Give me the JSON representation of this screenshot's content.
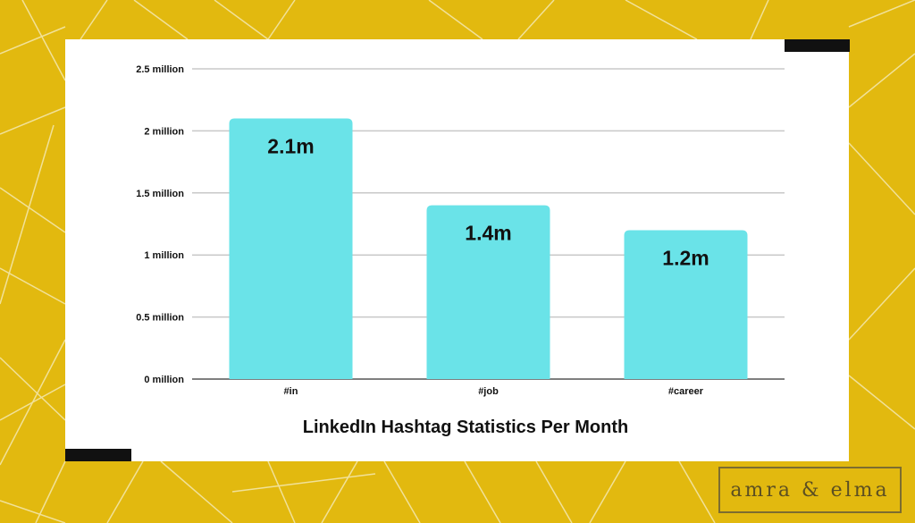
{
  "colors": {
    "background": "#e2b90f",
    "bar": "#6ae3e8",
    "card": "#ffffff",
    "accent_bars": "#111111",
    "text": "#111111"
  },
  "brand": {
    "text": "amra & elma"
  },
  "chart_data": {
    "type": "bar",
    "title": "LinkedIn Hashtag Statistics Per Month",
    "categories": [
      "#in",
      "#job",
      "#career"
    ],
    "values": [
      2100000,
      1400000,
      1200000
    ],
    "data_labels": [
      "2.1m",
      "1.4m",
      "1.2m"
    ],
    "yticks": [
      0,
      500000,
      1000000,
      1500000,
      2000000,
      2500000
    ],
    "ytick_labels": [
      "0 million",
      "0.5 million",
      "1 million",
      "1.5 million",
      "2 million",
      "2.5 million"
    ],
    "ylim": [
      0,
      2500000
    ],
    "grid": true,
    "xlabel": "",
    "ylabel": ""
  }
}
